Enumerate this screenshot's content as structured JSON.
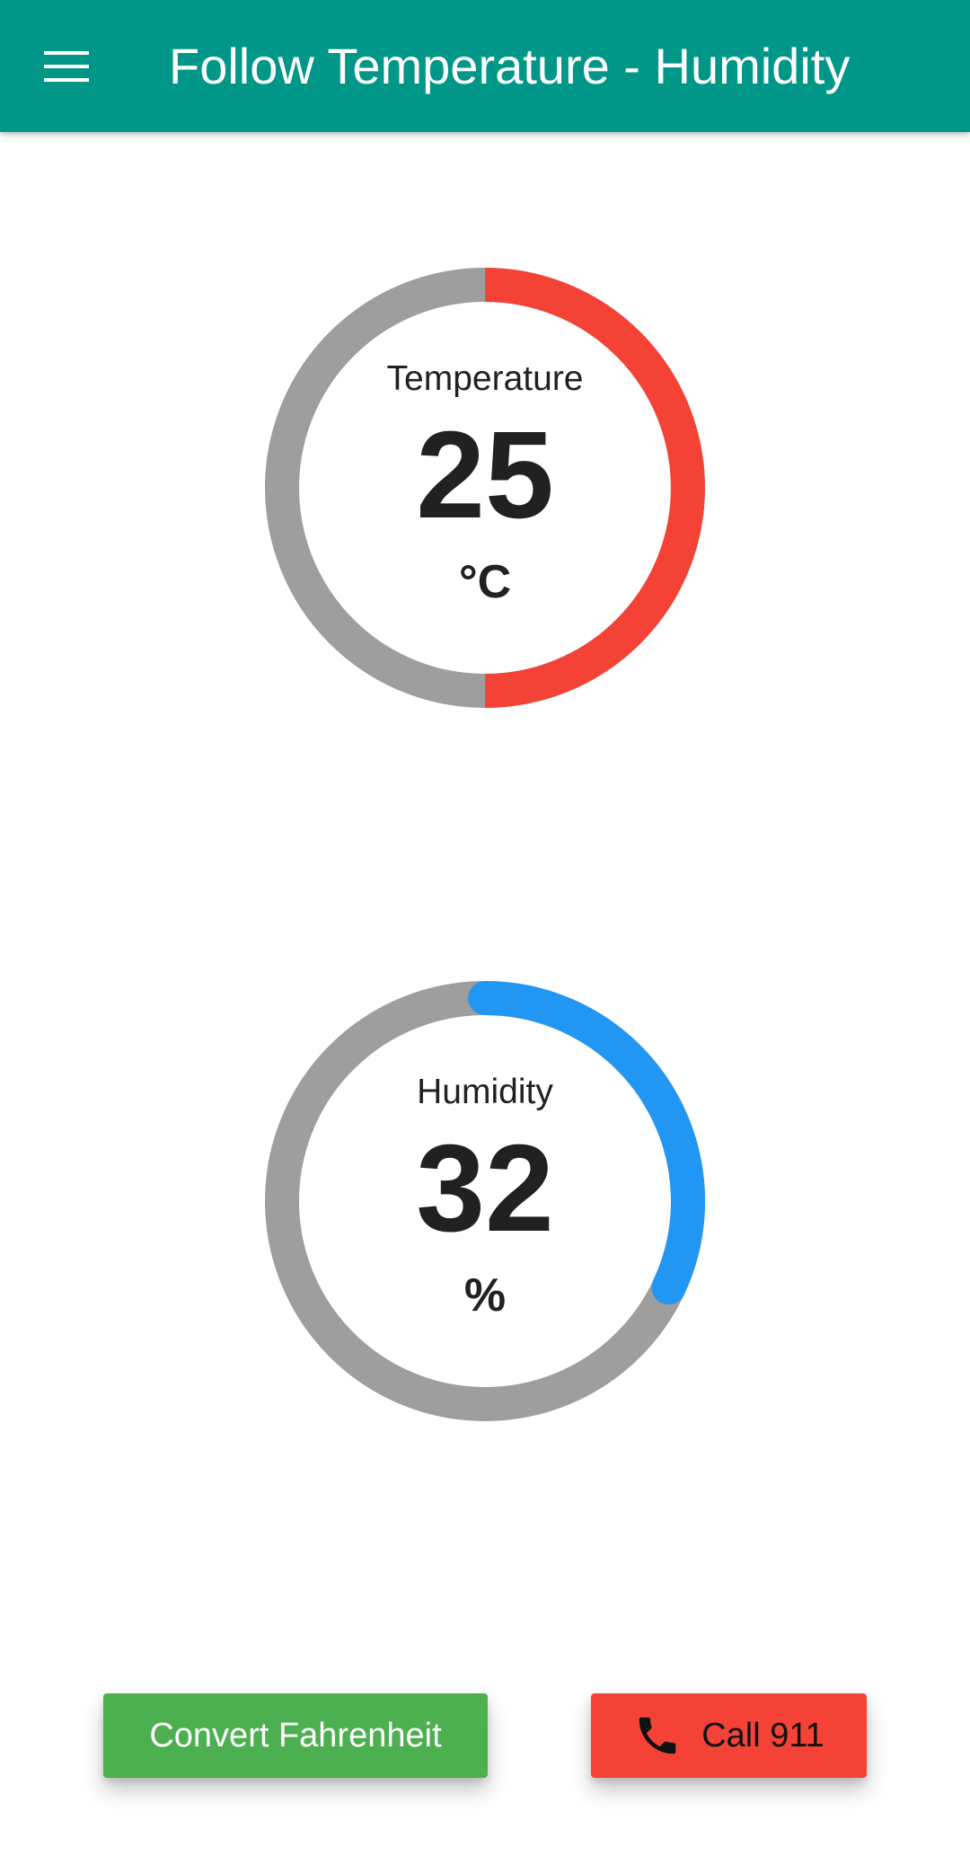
{
  "appbar": {
    "title": "Follow Temperature - Humidity",
    "menu_icon": "hamburger-menu-icon",
    "color": "#009688"
  },
  "temperature": {
    "label": "Temperature",
    "value": "25",
    "unit": "°C",
    "progress_fraction": 0.5,
    "progress_color": "#f44336",
    "track_color": "#9e9e9e"
  },
  "humidity": {
    "label": "Humidity",
    "value": "32",
    "unit": "%",
    "progress_fraction": 0.32,
    "progress_color": "#2196f3",
    "track_color": "#9e9e9e"
  },
  "buttons": {
    "convert_label": "Convert Fahrenheit",
    "convert_color": "#4caf50",
    "call_label": "Call 911",
    "call_icon": "phone-icon",
    "call_color": "#f44336"
  }
}
